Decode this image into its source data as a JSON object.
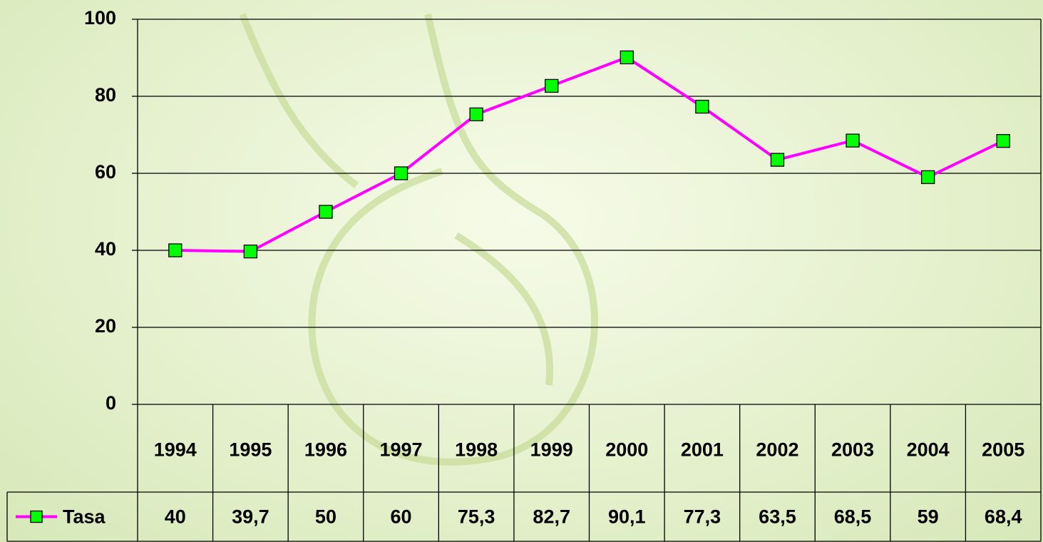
{
  "chart_data": {
    "type": "line",
    "categories": [
      "1994",
      "1995",
      "1996",
      "1997",
      "1998",
      "1999",
      "2000",
      "2001",
      "2002",
      "2003",
      "2004",
      "2005"
    ],
    "series": [
      {
        "name": "Tasa",
        "color": "#ff00ff",
        "marker_color": "#00ff00",
        "values": [
          40,
          39.7,
          50,
          60,
          75.3,
          82.7,
          90.1,
          77.3,
          63.5,
          68.5,
          59,
          68.4
        ],
        "value_labels": [
          "40",
          "39,7",
          "50",
          "60",
          "75,3",
          "82,7",
          "90,1",
          "77,3",
          "63,5",
          "68,5",
          "59",
          "68,4"
        ]
      }
    ],
    "ylim": [
      0,
      100
    ],
    "yticks": [
      0,
      20,
      40,
      60,
      80,
      100
    ],
    "grid": true
  }
}
